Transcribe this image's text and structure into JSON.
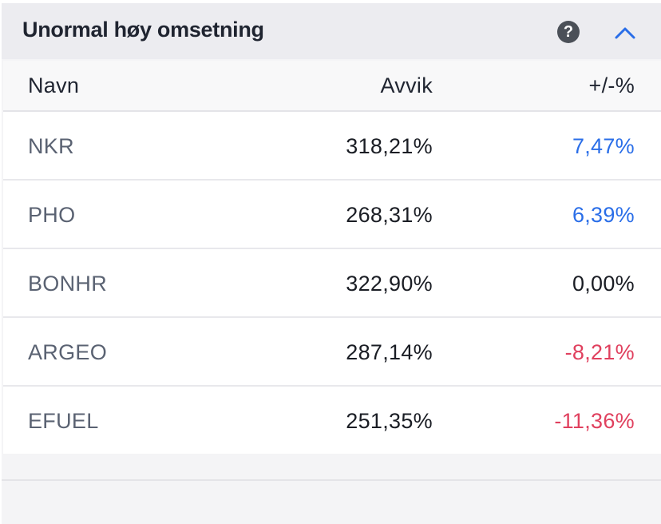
{
  "panel": {
    "title": "Unormal høy omsetning",
    "help_icon": "question-circle-icon",
    "collapse_icon": "chevron-up-icon",
    "accent_color": "#2a6ee8"
  },
  "table": {
    "columns": {
      "name": "Navn",
      "deviation": "Avvik",
      "change": "+/-%"
    },
    "rows": [
      {
        "name": "NKR",
        "deviation": "318,21%",
        "change": "7,47%",
        "trend": "pos"
      },
      {
        "name": "PHO",
        "deviation": "268,31%",
        "change": "6,39%",
        "trend": "pos"
      },
      {
        "name": "BONHR",
        "deviation": "322,90%",
        "change": "0,00%",
        "trend": "zero"
      },
      {
        "name": "ARGEO",
        "deviation": "287,14%",
        "change": "-8,21%",
        "trend": "neg"
      },
      {
        "name": "EFUEL",
        "deviation": "251,35%",
        "change": "-11,36%",
        "trend": "neg"
      }
    ]
  },
  "colors": {
    "positive": "#2a6ee8",
    "negative": "#e0405e",
    "neutral": "#1a1d24"
  }
}
